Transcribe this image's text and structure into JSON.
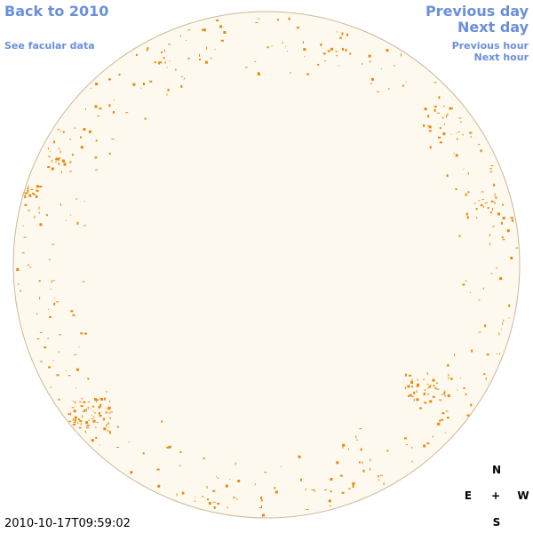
{
  "nav": {
    "back": "Back to 2010",
    "facular": "See facular data",
    "previous_day": "Previous day",
    "next_day": "Next day",
    "previous_hour": "Previous hour",
    "next_hour": "Next hour"
  },
  "timestamp": "2010-10-17T09:59:02",
  "compass": {
    "north": "N",
    "east": "E",
    "center": "+",
    "west": "W",
    "south": "S"
  }
}
